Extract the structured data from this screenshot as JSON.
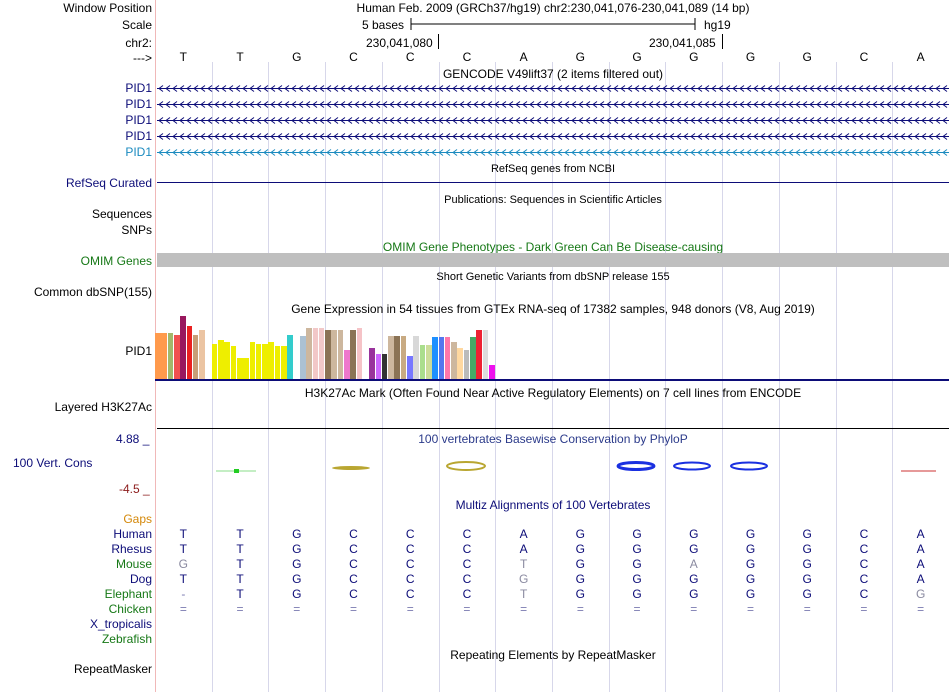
{
  "header": {
    "window_position_label": "Window Position",
    "window_position_value": "Human Feb. 2009 (GRCh37/hg19)   chr2:230,041,076-230,041,089 (14 bp)",
    "scale_label": "Scale",
    "scale_text": "5 bases",
    "assembly": "hg19",
    "chr_label": "chr2:",
    "coord_1": "230,041,080",
    "coord_2": "230,041,085",
    "arrow_label": "--->",
    "bases": [
      "T",
      "T",
      "G",
      "C",
      "C",
      "C",
      "A",
      "G",
      "G",
      "G",
      "G",
      "G",
      "C",
      "A"
    ]
  },
  "gencode": {
    "title": "GENCODE V49lift37 (2 items filtered out)",
    "rows": [
      {
        "label": "PID1",
        "color": "#0c0c78"
      },
      {
        "label": "PID1",
        "color": "#0c0c78"
      },
      {
        "label": "PID1",
        "color": "#0c0c78"
      },
      {
        "label": "PID1",
        "color": "#0c0c78"
      },
      {
        "label": "PID1",
        "color": "#1a8abf"
      }
    ]
  },
  "refseq": {
    "title": "RefSeq genes from NCBI",
    "label": "RefSeq Curated"
  },
  "publications": {
    "title": "Publications: Sequences in Scientific Articles",
    "label_1": "Sequences",
    "label_2": "SNPs"
  },
  "omim": {
    "title": "OMIM Gene Phenotypes - Dark Green Can Be Disease-causing",
    "label": "OMIM Genes"
  },
  "dbsnp": {
    "title": "Short Genetic Variants from dbSNP release 155",
    "label": "Common dbSNP(155)"
  },
  "gtex": {
    "title": "Gene Expression in 54 tissues from GTEx RNA-seq of 17382 samples, 948 donors (V8, Aug 2019)",
    "label": "PID1",
    "chart_data": {
      "type": "bar",
      "title": "Gene Expression in 54 tissues from GTEx RNA-seq of 17382 samples, 948 donors (V8, Aug 2019)",
      "xlabel": "",
      "ylabel": "",
      "ylim": [
        0,
        1
      ],
      "values": [
        0.73,
        0.73,
        0.73,
        0.7,
        1.0,
        0.85,
        0.7,
        0.78,
        0.0,
        0.57,
        0.62,
        0.6,
        0.53,
        0.35,
        0.35,
        0.6,
        0.57,
        0.57,
        0.6,
        0.53,
        0.53,
        0.7,
        0.0,
        0.68,
        0.82,
        0.82,
        0.82,
        0.78,
        0.78,
        0.78,
        0.47,
        0.78,
        0.82,
        0.0,
        0.5,
        0.4,
        0.4,
        0.68,
        0.68,
        0.68,
        0.38,
        0.68,
        0.55,
        0.55,
        0.67,
        0.67,
        0.67,
        0.6,
        0.5,
        0.47,
        0.67,
        0.78,
        0.78,
        0.23
      ],
      "colors": [
        "#ff9a4c",
        "#ff9a4c",
        "#a2b86b",
        "#f05050",
        "#99185e",
        "#ea2121",
        "#c89e77",
        "#ebc4a2",
        "#ffffff",
        "#eeee00",
        "#eeee00",
        "#eeee00",
        "#eeee00",
        "#eeee00",
        "#eeee00",
        "#eeee00",
        "#eeee00",
        "#eeee00",
        "#eeee00",
        "#eeee00",
        "#eeee00",
        "#33cccc",
        "#ffffff",
        "#abc1d3",
        "#cdb79e",
        "#f2c8c8",
        "#f2c8c8",
        "#8b7355",
        "#cdb79e",
        "#cdb79e",
        "#ee77cc",
        "#8b7355",
        "#f5c3c7",
        "#ffffff",
        "#99339c",
        "#cc66ff",
        "#333333",
        "#cdb79e",
        "#8b7355",
        "#c8aa82",
        "#7777ff",
        "#d8d8d8",
        "#aade8d",
        "#ccdd99",
        "#1e90ff",
        "#5577ee",
        "#ff77aa",
        "#cdb79e",
        "#ffd8a0",
        "#bbbbbb",
        "#44aa66",
        "#ee2233",
        "#dddddd",
        "#ee11ee"
      ]
    }
  },
  "h3k27ac": {
    "title": "H3K27Ac Mark (Often Found Near Active Regulatory Elements) on 7 cell lines from ENCODE",
    "label": "Layered H3K27Ac"
  },
  "phylop": {
    "title": "100 vertebrates Basewise Conservation by PhyloP",
    "label": "100 Vert. Cons",
    "max_label": "4.88 _",
    "min_label": "-4.5 _"
  },
  "multiz": {
    "title": "Multiz Alignments of 100 Vertebrates",
    "gaps_label": "Gaps",
    "species": [
      {
        "name": "Human",
        "color": "#0c0c78",
        "bases": [
          "T",
          "T",
          "G",
          "C",
          "C",
          "C",
          "A",
          "G",
          "G",
          "G",
          "G",
          "G",
          "C",
          "A"
        ]
      },
      {
        "name": "Rhesus",
        "color": "#0c0c78",
        "bases": [
          "T",
          "T",
          "G",
          "C",
          "C",
          "C",
          "A",
          "G",
          "G",
          "G",
          "G",
          "G",
          "C",
          "A"
        ]
      },
      {
        "name": "Mouse",
        "color": "#167816",
        "bases": [
          "G",
          "T",
          "G",
          "C",
          "C",
          "C",
          "T",
          "G",
          "G",
          "A",
          "G",
          "G",
          "C",
          "A"
        ]
      },
      {
        "name": "Dog",
        "color": "#0c0c78",
        "bases": [
          "T",
          "T",
          "G",
          "C",
          "C",
          "C",
          "G",
          "G",
          "G",
          "G",
          "G",
          "G",
          "C",
          "A"
        ]
      },
      {
        "name": "Elephant",
        "color": "#167816",
        "bases": [
          "-",
          "T",
          "G",
          "C",
          "C",
          "C",
          "T",
          "G",
          "G",
          "G",
          "G",
          "G",
          "C",
          "G"
        ]
      },
      {
        "name": "Chicken",
        "color": "#167816",
        "bases": [
          "=",
          "=",
          "=",
          "=",
          "=",
          "=",
          "=",
          "=",
          "=",
          "=",
          "=",
          "=",
          "=",
          "="
        ]
      },
      {
        "name": "X_tropicalis",
        "color": "#0c0c78",
        "bases": [
          "",
          "",
          "",
          "",
          "",
          "",
          "",
          "",
          "",
          "",
          "",
          "",
          "",
          ""
        ]
      },
      {
        "name": "Zebrafish",
        "color": "#167816",
        "bases": [
          "",
          "",
          "",
          "",
          "",
          "",
          "",
          "",
          "",
          "",
          "",
          "",
          "",
          ""
        ]
      }
    ]
  },
  "repeatmasker": {
    "title": "Repeating Elements by RepeatMasker",
    "label": "RepeatMasker"
  }
}
